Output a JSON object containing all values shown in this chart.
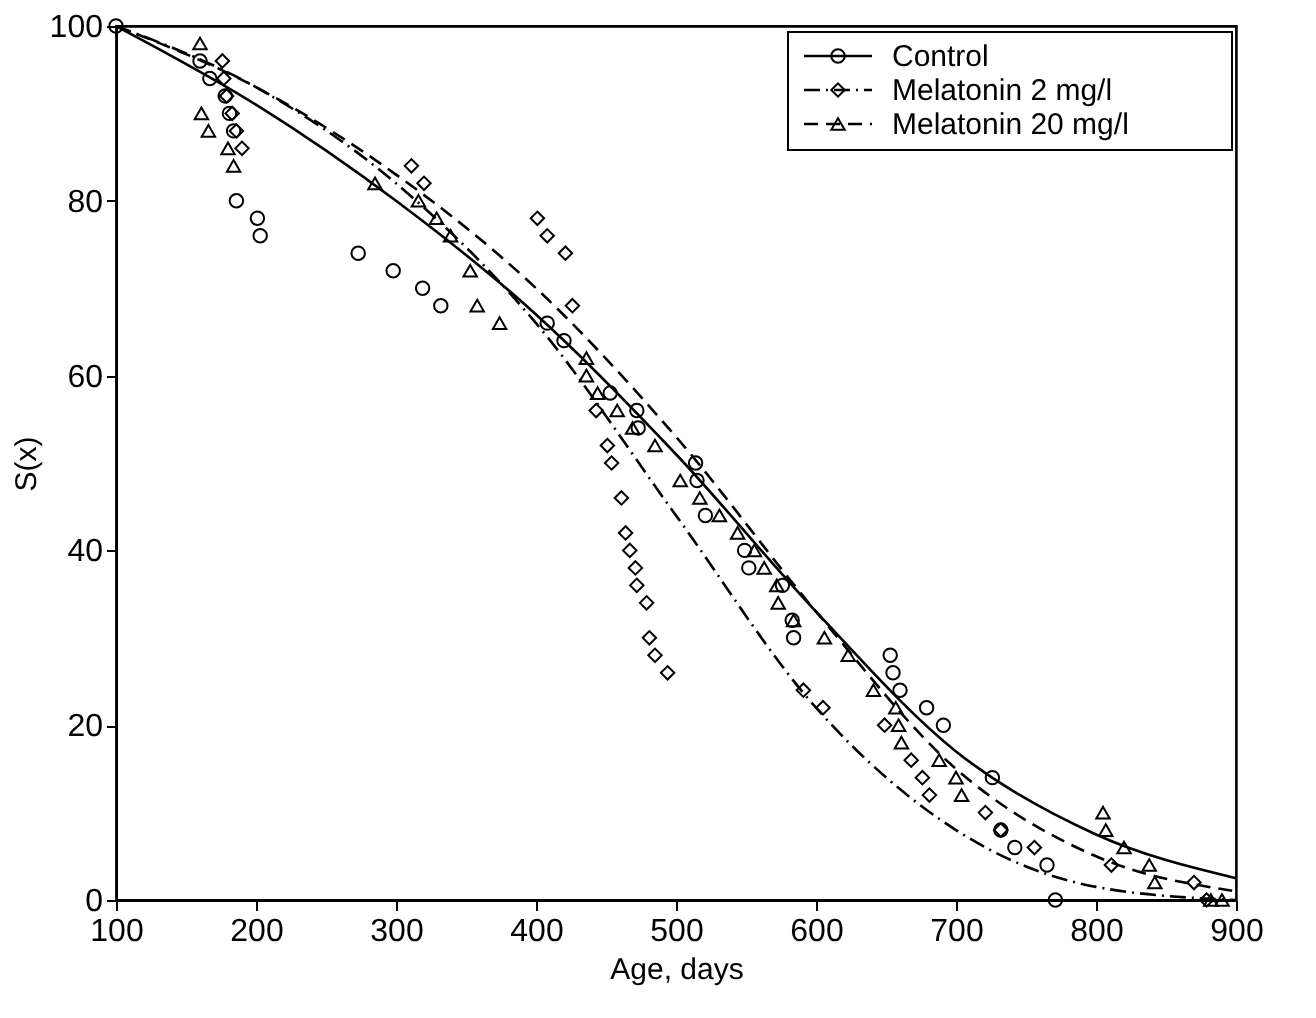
{
  "chart_data": {
    "type": "scatter",
    "xlabel": "Age, days",
    "ylabel": "S(x)",
    "xlim": [
      100,
      900
    ],
    "xticks": [
      100,
      200,
      300,
      400,
      500,
      600,
      700,
      800,
      900
    ],
    "ylim": [
      0,
      100
    ],
    "yticks": [
      0,
      20,
      40,
      60,
      80,
      100
    ],
    "grid": false,
    "legend": "top right",
    "series": [
      {
        "name": "Control",
        "type": "scatter",
        "marker": "circle",
        "color": "#000000",
        "x": [
          100,
          160,
          167,
          178,
          181,
          184,
          186,
          201,
          203,
          273,
          298,
          319,
          332,
          408,
          420,
          453,
          472,
          473,
          514,
          515,
          521,
          549,
          552,
          576,
          583,
          584,
          653,
          655,
          660,
          679,
          691,
          726,
          732,
          742,
          765,
          771
        ],
        "values": [
          100,
          96,
          94,
          92,
          90,
          88,
          80,
          78,
          76,
          74,
          72,
          70,
          68,
          66,
          64,
          58,
          56,
          54,
          50,
          48,
          44,
          40,
          38,
          36,
          32,
          30,
          28,
          26,
          24,
          22,
          20,
          14,
          8,
          6,
          4,
          0
        ]
      },
      {
        "name": "Melatonin 2 mg/l",
        "type": "scatter",
        "marker": "diamond",
        "color": "#000000",
        "x": [
          176,
          177,
          179,
          183,
          186,
          190,
          311,
          320,
          401,
          408,
          421,
          426,
          443,
          451,
          454,
          461,
          464,
          467,
          471,
          472,
          479,
          481,
          485,
          494,
          591,
          605,
          649,
          668,
          676,
          681,
          721,
          732,
          756,
          811,
          870,
          879
        ],
        "values": [
          96,
          94,
          92,
          90,
          88,
          86,
          84,
          82,
          78,
          76,
          74,
          68,
          56,
          52,
          50,
          46,
          42,
          40,
          38,
          36,
          34,
          30,
          28,
          26,
          24,
          22,
          20,
          16,
          14,
          12,
          10,
          8,
          6,
          4,
          2,
          0
        ]
      },
      {
        "name": "Melatonin 20 mg/l",
        "type": "scatter",
        "marker": "triangle",
        "color": "#000000",
        "x": [
          160,
          161,
          166,
          180,
          184,
          285,
          316,
          329,
          339,
          353,
          358,
          374,
          436,
          436,
          444,
          458,
          469,
          485,
          503,
          517,
          531,
          544,
          556,
          563,
          572,
          573,
          584,
          606,
          623,
          641,
          657,
          659,
          661,
          688,
          700,
          704,
          805,
          807,
          820,
          838,
          842,
          882,
          890
        ],
        "values": [
          98,
          90,
          88,
          86,
          84,
          82,
          80,
          78,
          76,
          72,
          68,
          66,
          62,
          60,
          58,
          56,
          54,
          52,
          48,
          46,
          44,
          42,
          40,
          38,
          36,
          34,
          32,
          30,
          28,
          24,
          22,
          20,
          18,
          16,
          14,
          12,
          10,
          8,
          6,
          4,
          2,
          0,
          0
        ]
      },
      {
        "type": "line",
        "line_style": "solid",
        "marker": "none",
        "color": "#000000",
        "x": [
          100,
          200,
          300,
          400,
          500,
          600,
          700,
          800,
          900
        ],
        "values": [
          100,
          91,
          80,
          67,
          51,
          33,
          17,
          7.5,
          2.5
        ]
      },
      {
        "type": "line",
        "line_style": "dashdot",
        "marker": "none",
        "color": "#000000",
        "x": [
          100,
          200,
          300,
          400,
          500,
          600,
          700,
          800,
          900
        ],
        "values": [
          100,
          93,
          82,
          66,
          44,
          22,
          8,
          1.5,
          0
        ]
      },
      {
        "type": "line",
        "line_style": "dashed",
        "marker": "none",
        "color": "#000000",
        "x": [
          100,
          200,
          300,
          400,
          500,
          600,
          700,
          800,
          900
        ],
        "values": [
          100,
          93,
          83,
          70,
          53,
          33,
          15,
          5,
          1
        ]
      }
    ]
  }
}
